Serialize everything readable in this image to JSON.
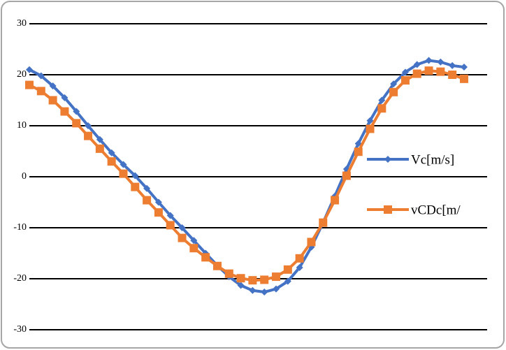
{
  "chart_data": {
    "type": "line",
    "series": [
      {
        "name": "Vc[m/s]",
        "color": "#4472c4",
        "marker": "diamond",
        "values": [
          21,
          19.8,
          17.8,
          15.5,
          12.8,
          10,
          7.3,
          4.7,
          2.4,
          0.2,
          -2.3,
          -5,
          -7.6,
          -10,
          -12.5,
          -15,
          -17.4,
          -19.6,
          -21.3,
          -22.3,
          -22.6,
          -22,
          -20.5,
          -17.8,
          -13.8,
          -9,
          -3.8,
          1.5,
          6.5,
          11,
          15,
          18.2,
          20.5,
          22,
          22.8,
          22.5,
          21.8,
          21.5
        ]
      },
      {
        "name": "vCDc[m/",
        "color": "#ed7d31",
        "marker": "square",
        "values": [
          18,
          16.8,
          15,
          12.8,
          10.5,
          8,
          5.5,
          3,
          0.6,
          -2,
          -4.6,
          -7,
          -9.5,
          -12,
          -14,
          -15.8,
          -17.5,
          -19,
          -19.9,
          -20.3,
          -20.2,
          -19.6,
          -18.2,
          -16,
          -12.8,
          -9,
          -4.6,
          0.2,
          4.9,
          9.4,
          13.4,
          16.6,
          18.9,
          20.2,
          20.8,
          20.6,
          20,
          19.2
        ]
      }
    ],
    "ylim": [
      -30,
      30
    ],
    "yticks": [
      30,
      20,
      10,
      0,
      -10,
      -20,
      -30
    ],
    "grid": true
  }
}
